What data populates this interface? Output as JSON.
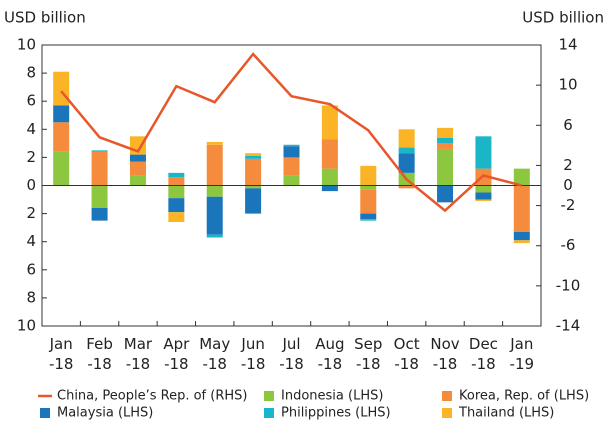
{
  "chart_data": {
    "type": "bar",
    "stacked": true,
    "ylabel": "USD billion",
    "y2label": "USD billion",
    "categories": [
      "Jan -18",
      "Feb -18",
      "Mar -18",
      "Apr -18",
      "May -18",
      "Jun -18",
      "Jul -18",
      "Aug -18",
      "Sep -18",
      "Oct -18",
      "Nov -18",
      "Dec -18",
      "Jan -19"
    ],
    "series": [
      {
        "name": "China, People’s Rep. of (RHS)",
        "type": "line",
        "axis": "y2",
        "color": "#e8562a",
        "values": [
          9.4,
          4.8,
          3.4,
          9.9,
          8.3,
          13.1,
          8.9,
          8.1,
          5.5,
          0.6,
          -2.5,
          1.0,
          0.0
        ]
      },
      {
        "name": "Indonesia (LHS)",
        "color": "#8dc63f",
        "values": [
          2.4,
          -1.6,
          0.7,
          -0.9,
          -0.8,
          -0.2,
          0.7,
          1.2,
          -0.3,
          0.9,
          2.6,
          -0.5,
          1.2
        ]
      },
      {
        "name": "Korea, Rep. of (LHS)",
        "color": "#f58b3c",
        "values": [
          2.1,
          2.4,
          1.0,
          0.6,
          2.9,
          1.9,
          1.3,
          2.1,
          -1.7,
          -0.2,
          0.4,
          1.2,
          -3.3
        ]
      },
      {
        "name": "Malaysia (LHS)",
        "color": "#1a75bb",
        "values": [
          1.2,
          -0.9,
          0.5,
          -1.0,
          -2.7,
          -1.8,
          0.8,
          -0.4,
          -0.4,
          1.4,
          -1.2,
          -0.5,
          -0.6
        ]
      },
      {
        "name": "Philippines (LHS)",
        "color": "#1bb5c8",
        "values": [
          0,
          0.1,
          0,
          0.3,
          -0.2,
          0.2,
          0.1,
          0,
          -0.1,
          0.4,
          0.4,
          2.3,
          0
        ]
      },
      {
        "name": "Thailand (LHS)",
        "color": "#fbb426",
        "values": [
          2.4,
          0,
          1.3,
          -0.7,
          0.2,
          0.2,
          0,
          2.4,
          1.4,
          1.3,
          0.7,
          -0.1,
          -0.2
        ]
      }
    ],
    "ylim": [
      -10,
      10
    ],
    "yticks": [
      {
        "value": -10,
        "label": "10"
      },
      {
        "value": -8,
        "label": "8"
      },
      {
        "value": -6,
        "label": "6"
      },
      {
        "value": -4,
        "label": "4"
      },
      {
        "value": -2,
        "label": "2"
      },
      0,
      2,
      4,
      6,
      8,
      10
    ],
    "y2lim": [
      -14,
      14
    ],
    "y2ticks": [
      -14,
      -10,
      -6,
      -2,
      0,
      2,
      6,
      10,
      14
    ],
    "legend": "bottom"
  }
}
